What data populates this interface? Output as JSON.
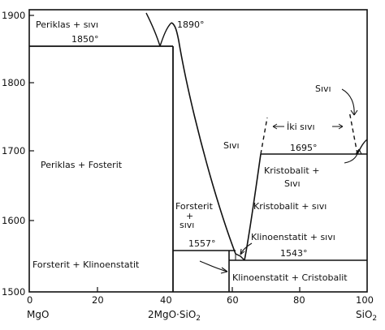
{
  "axes": {
    "y_ticks": [
      "1900",
      "1800",
      "1700",
      "1600",
      "1500"
    ],
    "x_ticks": [
      "0",
      "20",
      "40",
      "60",
      "80",
      "100"
    ],
    "x_end_left": "MgO",
    "x_mid": "2MgO·SiO",
    "x_mid_sub": "2",
    "x_end_right": "SiO",
    "x_end_right_sub": "2"
  },
  "temperatures": {
    "t1890": "1890°",
    "t1850": "1850°",
    "t1695": "1695°",
    "t1557": "1557°",
    "t1543": "1543°"
  },
  "regions": {
    "periklas_sivi": "Periklas + sıvı",
    "periklas_fosterit": "Periklas + Fosterit",
    "sivi_center": "Sıvı",
    "forsterit_sivi_1": "Forsterit",
    "forsterit_sivi_2": "+",
    "forsterit_sivi_3": "sıvı",
    "forsterit_klinoenstatit": "Forsterit + Klinoenstatit",
    "klinoenstatit_sivi": "Klinoenstatit + sıvı",
    "kristobalit_sivi": "Kristobalit + sıvı",
    "kristobalit_sivi_upper_1": "Kristobalit +",
    "kristobalit_sivi_upper_2": "Sıvı",
    "klinoenstatit_cristobalit": "Klinoenstatit + Cristobalit",
    "iki_sivi": "İki sıvı",
    "sivi_right": "Sıvı"
  }
}
